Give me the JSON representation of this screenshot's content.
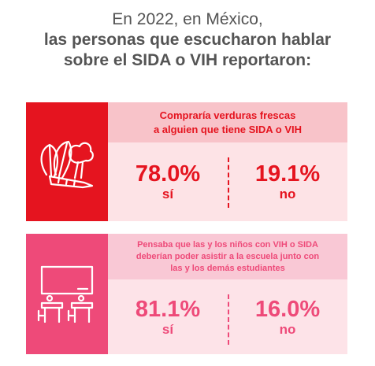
{
  "header": {
    "line1": "En 2022, en México,",
    "line2": "las personas que escucharon hablar",
    "line3": "sobre el SIDA o VIH reportaron:"
  },
  "cards": [
    {
      "question_lines": [
        "Compraría verduras frescas",
        "a alguien que tiene SIDA o VIH"
      ],
      "yes_pct": "78.0%",
      "yes_label": "sí",
      "no_pct": "19.1%",
      "no_label": "no",
      "icon": "vegetables-icon",
      "accent": "#e5141f"
    },
    {
      "question_lines": [
        "Pensaba que las y los niños con VIH o SIDA",
        "deberían poder asistir a la escuela junto con",
        "las y los demás estudiantes"
      ],
      "yes_pct": "81.1%",
      "yes_label": "sí",
      "no_pct": "16.0%",
      "no_label": "no",
      "icon": "classroom-icon",
      "accent": "#ee4a79"
    }
  ]
}
